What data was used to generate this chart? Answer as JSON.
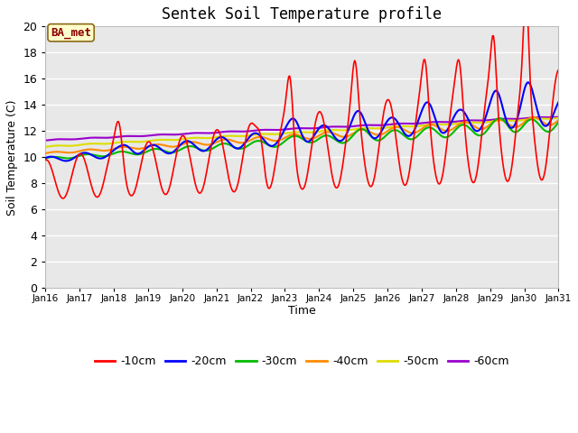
{
  "title": "Sentek Soil Temperature profile",
  "xlabel": "Time",
  "ylabel": "Soil Temperature (C)",
  "ylim": [
    0,
    20
  ],
  "yticks": [
    0,
    2,
    4,
    6,
    8,
    10,
    12,
    14,
    16,
    18,
    20
  ],
  "xtick_labels": [
    "Jan 16",
    "Jan 17",
    "Jan 18",
    "Jan 19",
    "Jan 20",
    "Jan 21",
    "Jan 22",
    "Jan 23",
    "Jan 24",
    "Jan 25",
    "Jan 26",
    "Jan 27",
    "Jan 28",
    "Jan 29",
    "Jan 30",
    "Jan 31"
  ],
  "annotation_text": "BA_met",
  "annotation_color": "#8B0000",
  "annotation_bg": "#FFFFCC",
  "annotation_border": "#8B6914",
  "bg_color": "#E8E8E8",
  "line_colors": {
    "-10cm": "#FF0000",
    "-20cm": "#0000FF",
    "-30cm": "#00BB00",
    "-40cm": "#FF8C00",
    "-50cm": "#DDDD00",
    "-60cm": "#9900CC"
  },
  "line_widths": {
    "-10cm": 1.2,
    "-20cm": 1.5,
    "-30cm": 1.5,
    "-40cm": 1.5,
    "-50cm": 1.5,
    "-60cm": 1.5
  }
}
